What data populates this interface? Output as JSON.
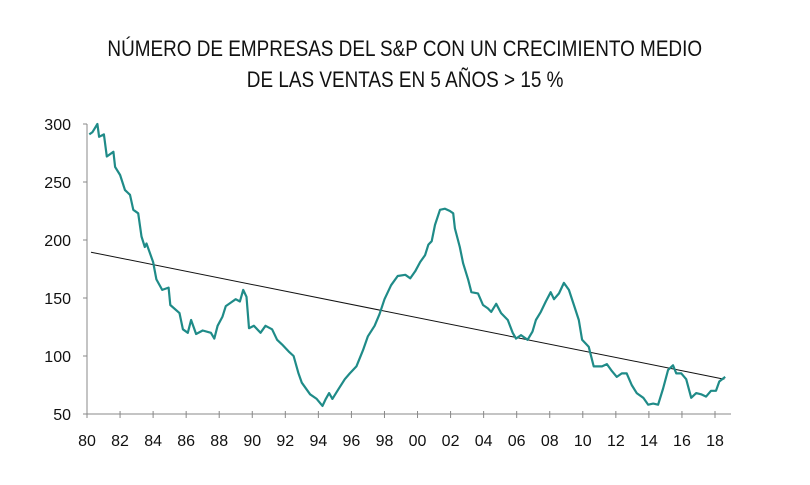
{
  "chart_data": {
    "type": "line",
    "title": [
      "NÚMERO DE EMPRESAS DEL S&P CON UN CRECIMIENTO MEDIO",
      "DE LAS VENTAS EN 5 AÑOS > 15 %"
    ],
    "xlabel": "",
    "ylabel": "",
    "xlim": [
      1980,
      2018.8
    ],
    "ylim": [
      50,
      300
    ],
    "x_ticks": [
      1980,
      1982,
      1984,
      1986,
      1988,
      1990,
      1992,
      1994,
      1996,
      1998,
      2000,
      2002,
      2004,
      2006,
      2008,
      2010,
      2012,
      2014,
      2016,
      2018
    ],
    "x_tick_labels": [
      "80",
      "82",
      "84",
      "86",
      "88",
      "90",
      "92",
      "94",
      "96",
      "98",
      "00",
      "02",
      "04",
      "06",
      "08",
      "10",
      "12",
      "14",
      "16",
      "18"
    ],
    "y_ticks": [
      50,
      100,
      150,
      200,
      250,
      300
    ],
    "y_tick_labels": [
      "50",
      "100",
      "150",
      "200",
      "250",
      "300"
    ],
    "grid": false,
    "legend": "none",
    "colors": {
      "series": "#1f8b88",
      "trend": "#111111",
      "axis": "#888888"
    },
    "series": [
      {
        "x": [
          1980.14,
          1980.33,
          1980.63,
          1980.73,
          1981.02,
          1981.2,
          1981.6,
          1981.7,
          1982.0,
          1982.3,
          1982.6,
          1982.8,
          1983.1,
          1983.3,
          1983.5,
          1983.6,
          1984.0,
          1984.2,
          1984.55,
          1984.94,
          1985.04,
          1985.6,
          1985.8,
          1986.1,
          1986.3,
          1986.6,
          1987.0,
          1987.5,
          1987.7,
          1987.9,
          1988.2,
          1988.4,
          1988.7,
          1989.0,
          1989.25,
          1989.45,
          1989.65,
          1989.8,
          1990.1,
          1990.5,
          1990.8,
          1991.2,
          1991.5,
          1991.8,
          1992.2,
          1992.5,
          1992.8,
          1993.0,
          1993.5,
          1993.9,
          1994.25,
          1994.45,
          1994.65,
          1994.85,
          1995.2,
          1995.6,
          1995.9,
          1996.3,
          1996.7,
          1997.0,
          1997.4,
          1997.7,
          1998.0,
          1998.4,
          1998.8,
          1999.26,
          1999.56,
          1999.86,
          2000.16,
          2000.46,
          2000.66,
          2000.86,
          2001.06,
          2001.36,
          2001.66,
          2001.96,
          2002.16,
          2002.26,
          2002.56,
          2002.76,
          2003.06,
          2003.26,
          2003.66,
          2003.96,
          2004.26,
          2004.46,
          2004.76,
          2005.06,
          2005.46,
          2005.76,
          2005.96,
          2006.26,
          2006.66,
          2006.96,
          2007.16,
          2007.46,
          2007.76,
          2008.06,
          2008.26,
          2008.56,
          2008.86,
          2009.16,
          2009.46,
          2009.76,
          2009.96,
          2010.36,
          2010.66,
          2011.16,
          2011.46,
          2011.76,
          2012.06,
          2012.36,
          2012.66,
          2012.96,
          2013.26,
          2013.66,
          2013.96,
          2014.26,
          2014.56,
          2014.86,
          2015.16,
          2015.46,
          2015.66,
          2015.96,
          2016.26,
          2016.56,
          2016.86,
          2017.16,
          2017.46,
          2017.76,
          2018.06,
          2018.26,
          2018.62
        ],
        "y": [
          291,
          293,
          300,
          289,
          291,
          272,
          276,
          263,
          256,
          243,
          239,
          226,
          223,
          203,
          194,
          197,
          181,
          166,
          157,
          159,
          144,
          137,
          123,
          120,
          131,
          119,
          122,
          120,
          115,
          126,
          134,
          143,
          146,
          149,
          147,
          157,
          151,
          124,
          126,
          120,
          126,
          123,
          114,
          110,
          104,
          100,
          85,
          77,
          67,
          63,
          57,
          63,
          68,
          63,
          71,
          80,
          85,
          91,
          105,
          117,
          126,
          136,
          149,
          161,
          169,
          170,
          167,
          173,
          181,
          187,
          196,
          199,
          213,
          226,
          227,
          225,
          223,
          210,
          194,
          180,
          166,
          155,
          154,
          144,
          141,
          138,
          145,
          137,
          131,
          120,
          115,
          118,
          114,
          121,
          131,
          138,
          147,
          155,
          149,
          154,
          163,
          157,
          144,
          131,
          114,
          108,
          91,
          91,
          93,
          87,
          82,
          85,
          85,
          75,
          68,
          64,
          58,
          59,
          58,
          72,
          88,
          92,
          85,
          85,
          80,
          64,
          68,
          67,
          65,
          70,
          70,
          78,
          82
        ]
      },
      {
        "x": [
          1980.24,
          2018.56
        ],
        "y": [
          189.5,
          80
        ]
      }
    ]
  }
}
